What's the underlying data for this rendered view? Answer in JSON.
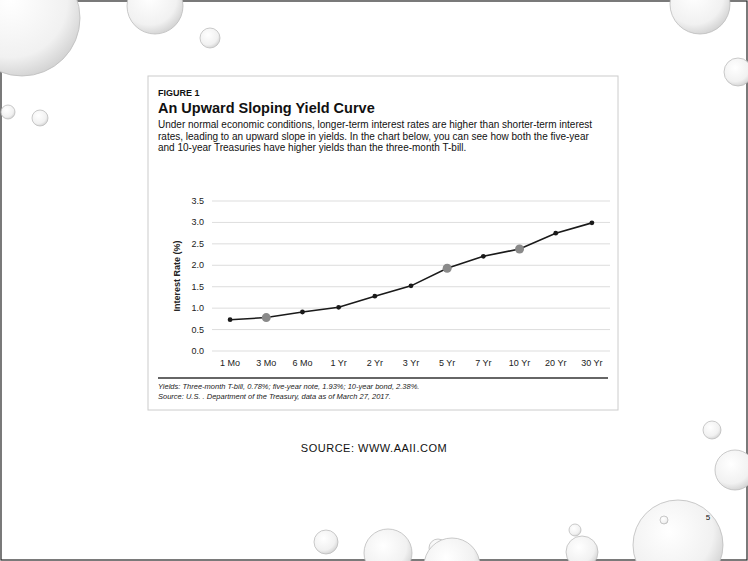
{
  "slide": {
    "source": "SOURCE:  WWW.AAII.COM",
    "page_number": "5"
  },
  "figure": {
    "label": "FIGURE 1",
    "notes": [
      "Yields: Three-month T-bill, 0.78%; five-year note, 1.93%; 10-year bond, 2.38%.",
      "Source: U.S. . Department of the Treasury, data as of March 27, 2017."
    ]
  },
  "chart_data": {
    "type": "line",
    "title": "An Upward Sloping Yield Curve",
    "subtitle": "Under normal economic conditions, longer-term interest rates are higher than shorter-term interest rates, leading to an upward slope in yields. In the chart below, you can see how both the five-year and 10-year Treasuries have higher yields than the three-month T-bill.",
    "y_label": "Interest Rate (%)",
    "categories": [
      "1 Mo",
      "3 Mo",
      "6 Mo",
      "1 Yr",
      "2 Yr",
      "3 Yr",
      "5 Yr",
      "7 Yr",
      "10 Yr",
      "20 Yr",
      "30 Yr"
    ],
    "values": [
      0.73,
      0.78,
      0.91,
      1.02,
      1.28,
      1.52,
      1.93,
      2.21,
      2.38,
      2.75,
      2.99
    ],
    "color": "#1a1a1a",
    "colors": [
      "#1a1a1a",
      "#8a8a8a",
      "#1a1a1a",
      "#1a1a1a",
      "#1a1a1a",
      "#1a1a1a",
      "#8a8a8a",
      "#1a1a1a",
      "#8a8a8a",
      "#1a1a1a",
      "#1a1a1a"
    ],
    "marker": "circle",
    "ylim": [
      0,
      3.5
    ],
    "yticks": [
      {
        "value": 0,
        "label": "0.0"
      },
      0.5,
      {
        "value": 1,
        "label": "1.0"
      },
      1.5,
      {
        "value": 2,
        "label": "2.0"
      },
      2.5,
      {
        "value": 3,
        "label": "3.0"
      },
      3.5
    ],
    "grid": true
  }
}
